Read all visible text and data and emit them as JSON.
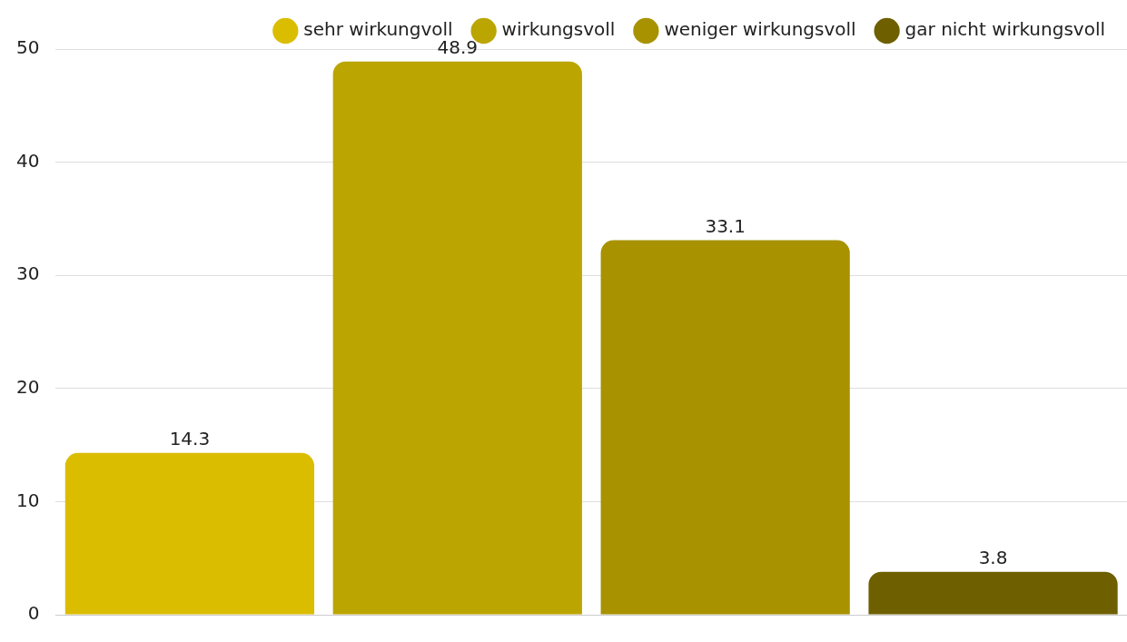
{
  "chart_data": {
    "type": "bar",
    "categories": [
      null
    ],
    "series": [
      {
        "name": "sehr wirkungvoll",
        "color": "#dbbd00",
        "values": [
          14.3
        ]
      },
      {
        "name": "wirkungsvoll",
        "color": "#bba500",
        "values": [
          48.9
        ]
      },
      {
        "name": "weniger wirkungsvoll",
        "color": "#a89200",
        "values": [
          33.1
        ]
      },
      {
        "name": "gar nicht wirkungsvoll",
        "color": "#6e5f00",
        "values": [
          3.8
        ]
      }
    ],
    "ylim": [
      0,
      50
    ],
    "yticks": [
      0,
      10,
      20,
      30,
      40,
      50
    ],
    "grid": "y",
    "legend": "top right",
    "tick_labels": "y",
    "data_labels": true
  }
}
